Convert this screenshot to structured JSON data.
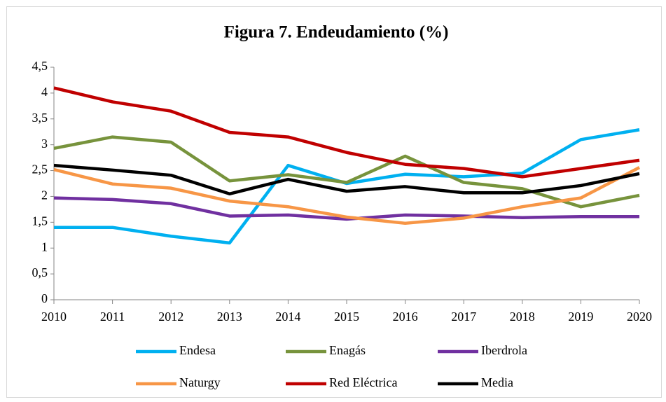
{
  "chart_data": {
    "type": "line",
    "title": "Figura 7. Endeudamiento (%)",
    "x": [
      2010,
      2011,
      2012,
      2013,
      2014,
      2015,
      2016,
      2017,
      2018,
      2019,
      2020
    ],
    "xlim": [
      2010,
      2020
    ],
    "xticks": [
      2010,
      2011,
      2012,
      2013,
      2014,
      2015,
      2016,
      2017,
      2018,
      2019,
      2020
    ],
    "ylim": [
      0,
      4.5
    ],
    "yticks": [
      0,
      {
        "value": 0.5,
        "label": "0,5"
      },
      1,
      {
        "value": 1.5,
        "label": "1,5"
      },
      2,
      {
        "value": 2.5,
        "label": "2,5"
      },
      3,
      {
        "value": 3.5,
        "label": "3,5"
      },
      4,
      {
        "value": 4.5,
        "label": "4,5"
      }
    ],
    "grid": false,
    "legend": "bottom",
    "series": [
      {
        "name": "Endesa",
        "color": "#00b0f0",
        "values": [
          1.4,
          1.4,
          1.23,
          1.1,
          2.6,
          2.25,
          2.43,
          2.38,
          2.45,
          3.1,
          3.29
        ]
      },
      {
        "name": "Enagás",
        "color": "#77933c",
        "values": [
          2.93,
          3.15,
          3.05,
          2.3,
          2.42,
          2.27,
          2.78,
          2.27,
          2.15,
          1.8,
          2.02
        ]
      },
      {
        "name": "Iberdrola",
        "color": "#7030a0",
        "values": [
          1.97,
          1.94,
          1.86,
          1.62,
          1.64,
          1.56,
          1.64,
          1.62,
          1.59,
          1.61,
          1.61
        ]
      },
      {
        "name": "Naturgy",
        "color": "#f79646",
        "values": [
          2.52,
          2.24,
          2.16,
          1.91,
          1.8,
          1.6,
          1.48,
          1.58,
          1.8,
          1.97,
          2.56
        ]
      },
      {
        "name": "Red Eléctrica",
        "color": "#c00000",
        "values": [
          4.1,
          3.83,
          3.65,
          3.24,
          3.15,
          2.85,
          2.62,
          2.54,
          2.38,
          2.54,
          2.7
        ]
      },
      {
        "name": "Media",
        "color": "#000000",
        "values": [
          2.6,
          2.51,
          2.41,
          2.05,
          2.33,
          2.1,
          2.19,
          2.07,
          2.07,
          2.21,
          2.44
        ]
      }
    ]
  }
}
